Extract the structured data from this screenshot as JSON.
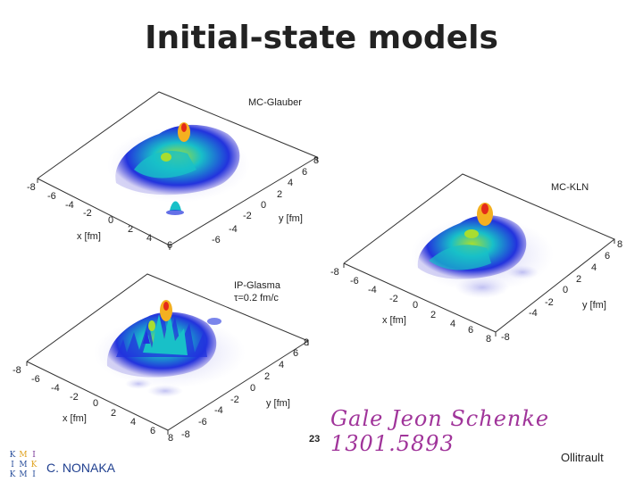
{
  "slide": {
    "title": "Initial-state models",
    "page_number": "23",
    "reference": "Gale Jeon Schenke 1301.5893",
    "author": "C. NONAKA",
    "credit": "Ollitrault"
  },
  "logo": {
    "cells": [
      "K",
      "M",
      "I",
      "I",
      "M",
      "K",
      "K",
      "M",
      "I"
    ],
    "colors": [
      "#2a4f9c",
      "#e0a21e",
      "#7b3b9a"
    ]
  },
  "panels": [
    {
      "label_lines": [
        "MC-Glauber"
      ],
      "x_axis_label": "x [fm]",
      "y_axis_label": "y [fm]",
      "x_ticks": [
        "-8",
        "-6",
        "-4",
        "-2",
        "0",
        "2",
        "4",
        "6"
      ],
      "y_ticks": [
        "-6",
        "-4",
        "-2",
        "0",
        "2",
        "4",
        "6",
        "8"
      ]
    },
    {
      "label_lines": [
        "MC-KLN"
      ],
      "x_axis_label": "x [fm]",
      "y_axis_label": "y [fm]",
      "x_ticks": [
        "-8",
        "-6",
        "-4",
        "-2",
        "0",
        "2",
        "4",
        "6",
        "8"
      ],
      "y_ticks": [
        "-8",
        "-4",
        "-2",
        "0",
        "2",
        "4",
        "6",
        "8"
      ]
    },
    {
      "label_lines": [
        "IP-Glasma",
        "τ=0.2 fm/c"
      ],
      "x_axis_label": "x [fm]",
      "y_axis_label": "y [fm]",
      "x_ticks": [
        "-8",
        "-6",
        "-4",
        "-2",
        "0",
        "2",
        "4",
        "6",
        "8"
      ],
      "y_ticks": [
        "-8",
        "-6",
        "-4",
        "-2",
        "0",
        "2",
        "4",
        "6",
        "8"
      ]
    }
  ],
  "colors": {
    "surface_low": "#1a1ad8",
    "surface_mid": "#12b8d0",
    "surface_high": "#9ad83a",
    "peak": "#f0a020",
    "peak_top": "#e02020",
    "reference_ink": "#a0349a"
  }
}
